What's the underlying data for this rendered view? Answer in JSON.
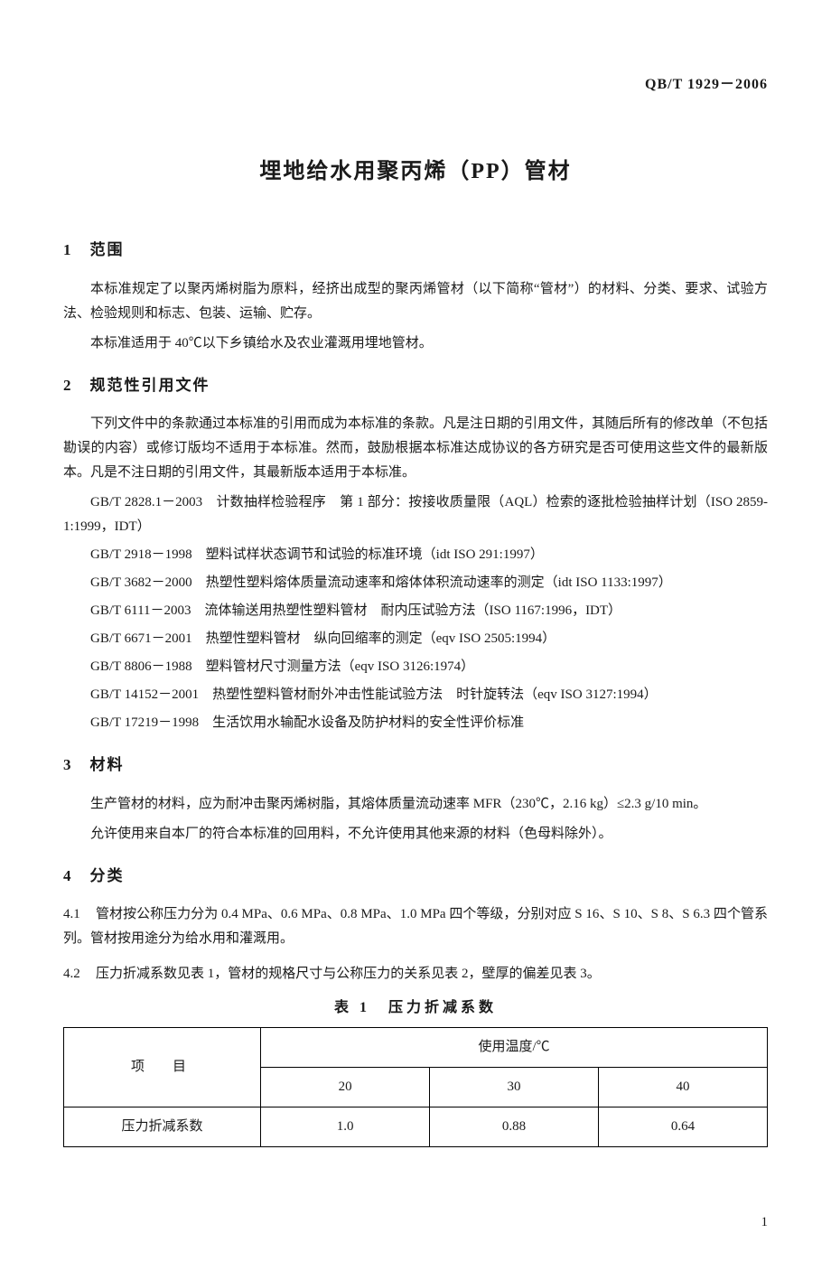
{
  "doc_code": "QB/T 1929－2006",
  "main_title": "埋地给水用聚丙烯（PP）管材",
  "sections": {
    "s1": {
      "num": "1",
      "title": "范围"
    },
    "s2": {
      "num": "2",
      "title": "规范性引用文件"
    },
    "s3": {
      "num": "3",
      "title": "材料"
    },
    "s4": {
      "num": "4",
      "title": "分类"
    }
  },
  "p": {
    "s1a": "本标准规定了以聚丙烯树脂为原料，经挤出成型的聚丙烯管材（以下简称“管材”）的材料、分类、要求、试验方法、检验规则和标志、包装、运输、贮存。",
    "s1b": "本标准适用于 40℃以下乡镇给水及农业灌溉用埋地管材。",
    "s2a": "下列文件中的条款通过本标准的引用而成为本标准的条款。凡是注日期的引用文件，其随后所有的修改单（不包括勘误的内容）或修订版均不适用于本标准。然而，鼓励根据本标准达成协议的各方研究是否可使用这些文件的最新版本。凡是不注日期的引用文件，其最新版本适用于本标准。",
    "s3a": "生产管材的材料，应为耐冲击聚丙烯树脂，其熔体质量流动速率 MFR（230℃，2.16 kg）≤2.3 g/10 min。",
    "s3b": "允许使用来自本厂的符合本标准的回用料，不允许使用其他来源的材料（色母料除外）。"
  },
  "refs": [
    "GB/T 2828.1－2003　计数抽样检验程序　第 1 部分：按接收质量限（AQL）检索的逐批检验抽样计划（ISO 2859-1:1999，IDT）",
    "GB/T 2918－1998　塑料试样状态调节和试验的标准环境（idt ISO 291:1997）",
    "GB/T 3682－2000　热塑性塑料熔体质量流动速率和熔体体积流动速率的测定（idt ISO 1133:1997）",
    "GB/T 6111－2003　流体输送用热塑性塑料管材　耐内压试验方法（ISO 1167:1996，IDT）",
    "GB/T 6671－2001　热塑性塑料管材　纵向回缩率的测定（eqv ISO 2505:1994）",
    "GB/T 8806－1988　塑料管材尺寸测量方法（eqv ISO 3126:1974）",
    "GB/T 14152－2001　热塑性塑料管材耐外冲击性能试验方法　时针旋转法（eqv ISO 3127:1994）",
    "GB/T 17219－1998　生活饮用水输配水设备及防护材料的安全性评价标准"
  ],
  "sub41": {
    "num": "4.1",
    "text": "管材按公称压力分为 0.4 MPa、0.6 MPa、0.8 MPa、1.0 MPa 四个等级，分别对应 S 16、S 10、S 8、S 6.3 四个管系列。管材按用途分为给水用和灌溉用。"
  },
  "sub42": {
    "num": "4.2",
    "text": "压力折减系数见表 1，管材的规格尺寸与公称压力的关系见表 2，壁厚的偏差见表 3。"
  },
  "table1": {
    "caption": "表 1　压力折减系数",
    "row_head_1": "项　目",
    "col_group_head": "使用温度/℃",
    "temps": [
      "20",
      "30",
      "40"
    ],
    "row_head_2": "压力折减系数",
    "values": [
      "1.0",
      "0.88",
      "0.64"
    ],
    "col_widths": [
      "28%",
      "24%",
      "24%",
      "24%"
    ]
  },
  "page_number": "1"
}
